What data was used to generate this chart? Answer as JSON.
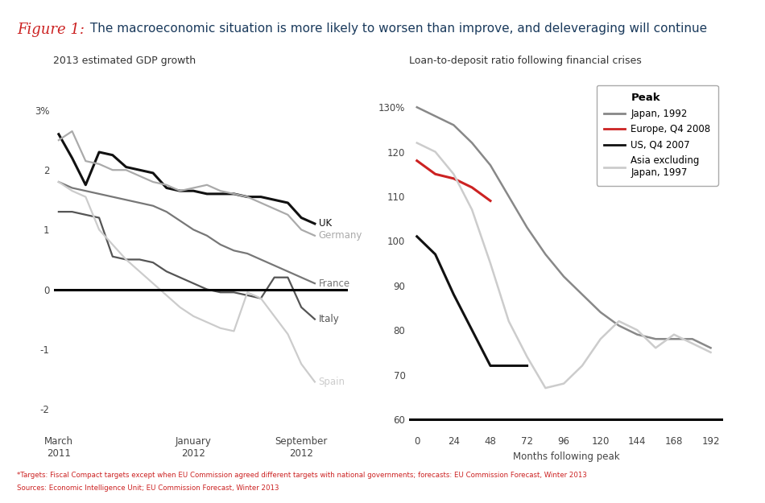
{
  "title_italic": "Figure 1:",
  "title_text": " The macroeconomic situation is more likely to worsen than improve, and deleveraging will continue",
  "title_color_italic": "#cc2222",
  "title_color_text": "#1a3a5c",
  "left_chart_title": "2013 estimated GDP growth",
  "left_yticks": [
    3,
    2,
    1,
    0,
    -1,
    -2
  ],
  "left_ytick_labels": [
    "3%",
    "2",
    "1",
    "0",
    "-1",
    "-2"
  ],
  "left_xtick_labels": [
    "March\n2011",
    "January\n2012",
    "September\n2012"
  ],
  "left_ylim": [
    -2.4,
    3.5
  ],
  "gdp_n": 20,
  "uk_color": "#111111",
  "germany_color": "#aaaaaa",
  "france_color": "#777777",
  "italy_color": "#555555",
  "spain_color": "#cccccc",
  "uk_data": [
    2.6,
    2.2,
    1.75,
    2.3,
    2.25,
    2.05,
    2.0,
    1.95,
    1.7,
    1.65,
    1.65,
    1.6,
    1.6,
    1.6,
    1.55,
    1.55,
    1.5,
    1.45,
    1.2,
    1.1
  ],
  "germany_data": [
    2.5,
    2.65,
    2.15,
    2.1,
    2.0,
    2.0,
    1.9,
    1.8,
    1.75,
    1.65,
    1.7,
    1.75,
    1.65,
    1.6,
    1.55,
    1.45,
    1.35,
    1.25,
    1.0,
    0.9
  ],
  "france_data": [
    1.8,
    1.7,
    1.65,
    1.6,
    1.55,
    1.5,
    1.45,
    1.4,
    1.3,
    1.15,
    1.0,
    0.9,
    0.75,
    0.65,
    0.6,
    0.5,
    0.4,
    0.3,
    0.2,
    0.1
  ],
  "italy_data": [
    1.3,
    1.3,
    1.25,
    1.2,
    0.55,
    0.5,
    0.5,
    0.45,
    0.3,
    0.2,
    0.1,
    0.0,
    -0.05,
    -0.05,
    -0.1,
    -0.15,
    0.2,
    0.2,
    -0.3,
    -0.5
  ],
  "spain_data": [
    1.8,
    1.65,
    1.55,
    1.0,
    0.75,
    0.5,
    0.3,
    0.1,
    -0.1,
    -0.3,
    -0.45,
    -0.55,
    -0.65,
    -0.7,
    -0.05,
    -0.15,
    -0.45,
    -0.75,
    -1.25,
    -1.55
  ],
  "right_chart_title": "Loan-to-deposit ratio following financial crises",
  "right_yticks": [
    60,
    70,
    80,
    90,
    100,
    110,
    120,
    130
  ],
  "right_ytick_labels": [
    "60",
    "70",
    "80",
    "90",
    "100",
    "110",
    "120",
    "130%"
  ],
  "right_xticks": [
    0,
    24,
    48,
    72,
    96,
    120,
    144,
    168,
    192
  ],
  "right_xlabel": "Months following peak",
  "right_ylim": [
    57,
    136
  ],
  "right_xlim": [
    -5,
    200
  ],
  "japan_color": "#888888",
  "europe_color": "#cc2222",
  "us_color": "#111111",
  "asia_color": "#cccccc",
  "japan_x": [
    0,
    12,
    24,
    36,
    48,
    60,
    72,
    84,
    96,
    108,
    120,
    132,
    144,
    156,
    168,
    180,
    192
  ],
  "japan_y": [
    130,
    128,
    126,
    122,
    117,
    110,
    103,
    97,
    92,
    88,
    84,
    81,
    79,
    78,
    78,
    78,
    76
  ],
  "europe_x": [
    0,
    12,
    24,
    36,
    48
  ],
  "europe_y": [
    118,
    115,
    114,
    112,
    109
  ],
  "us_x": [
    0,
    12,
    24,
    36,
    48,
    60,
    72
  ],
  "us_y": [
    101,
    97,
    88,
    80,
    72,
    72,
    72
  ],
  "asia_x": [
    0,
    12,
    24,
    36,
    48,
    60,
    72,
    84,
    96,
    108,
    120,
    132,
    144,
    156,
    168,
    180,
    192
  ],
  "asia_y": [
    122,
    120,
    115,
    107,
    95,
    82,
    74,
    67,
    68,
    72,
    78,
    82,
    80,
    76,
    79,
    77,
    75
  ],
  "legend_peak": "Peak",
  "legend_entries": [
    {
      "label": "Japan, 1992",
      "color": "#888888"
    },
    {
      "label": "Europe, Q4 2008",
      "color": "#cc2222"
    },
    {
      "label": "US, Q4 2007",
      "color": "#111111"
    },
    {
      "label": "Asia excluding\nJapan, 1997",
      "color": "#cccccc"
    }
  ],
  "footnote1": "*Targets: Fiscal Compact targets except when EU Commission agreed different targets with national governments; forecasts: EU Commission Forecast, Winter 2013",
  "footnote2": "Sources: Economic Intelligence Unit; EU Commission Forecast, Winter 2013",
  "footnote_color": "#cc2222"
}
